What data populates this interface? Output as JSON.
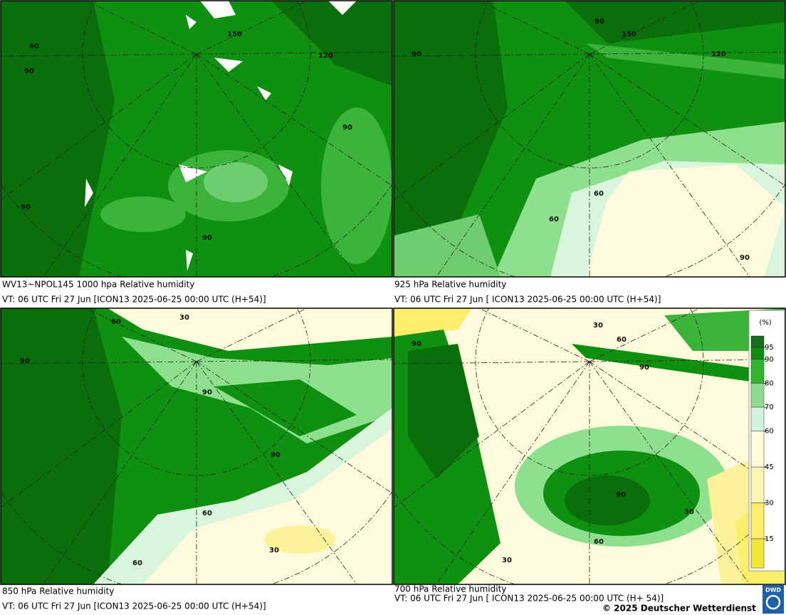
{
  "panels": [
    {
      "title": "WV13~NPOL145 1000 hpa Relative humidity",
      "valid": "VT: 06 UTC Fri  27 Jun [ICON13 2025-06-25 00:00 UTC  (H+54)]",
      "labels": [
        "60",
        "90",
        "90",
        "90",
        "90",
        "150",
        "120"
      ]
    },
    {
      "title": "925 hPa Relative humidity",
      "valid": "VT: 06 UTC Fri  27 Jun [ ICON13 2025-06-25 00:00 UTC  (H+54)]",
      "labels": [
        "90",
        "90",
        "60",
        "60",
        "90",
        "150",
        "120"
      ]
    },
    {
      "title": "850 hPa  Relative humidity",
      "valid": "VT: 06 UTC Fri  27 Jun [ICON13 2025-06-25 00:00 UTC  (H+54)]",
      "labels": [
        "60",
        "90",
        "90",
        "90",
        "60",
        "30",
        "30",
        "60"
      ]
    },
    {
      "title": "700 hPa Relative humidity",
      "valid": "VT: 06 UTC Fri  27 Jun [ ICON13 2025-06-25 00:00 UTC  (H+ 54)]",
      "labels": [
        "90",
        "60",
        "90",
        "90",
        "30",
        "60",
        "30",
        "30"
      ]
    }
  ],
  "legend": {
    "unit": "(%)",
    "levels": [
      95,
      90,
      80,
      70,
      60,
      45,
      30,
      15
    ],
    "colors": [
      "#1b6b1b",
      "#0f8c0f",
      "#2fb42f",
      "#8fdc8f",
      "#d2f4dc",
      "#fdfbdc",
      "#fcf6b4",
      "#fbee6a",
      "#f4e634"
    ]
  },
  "copyright": "© 2025 Deutscher Wetterdienst",
  "logo": "DWD"
}
